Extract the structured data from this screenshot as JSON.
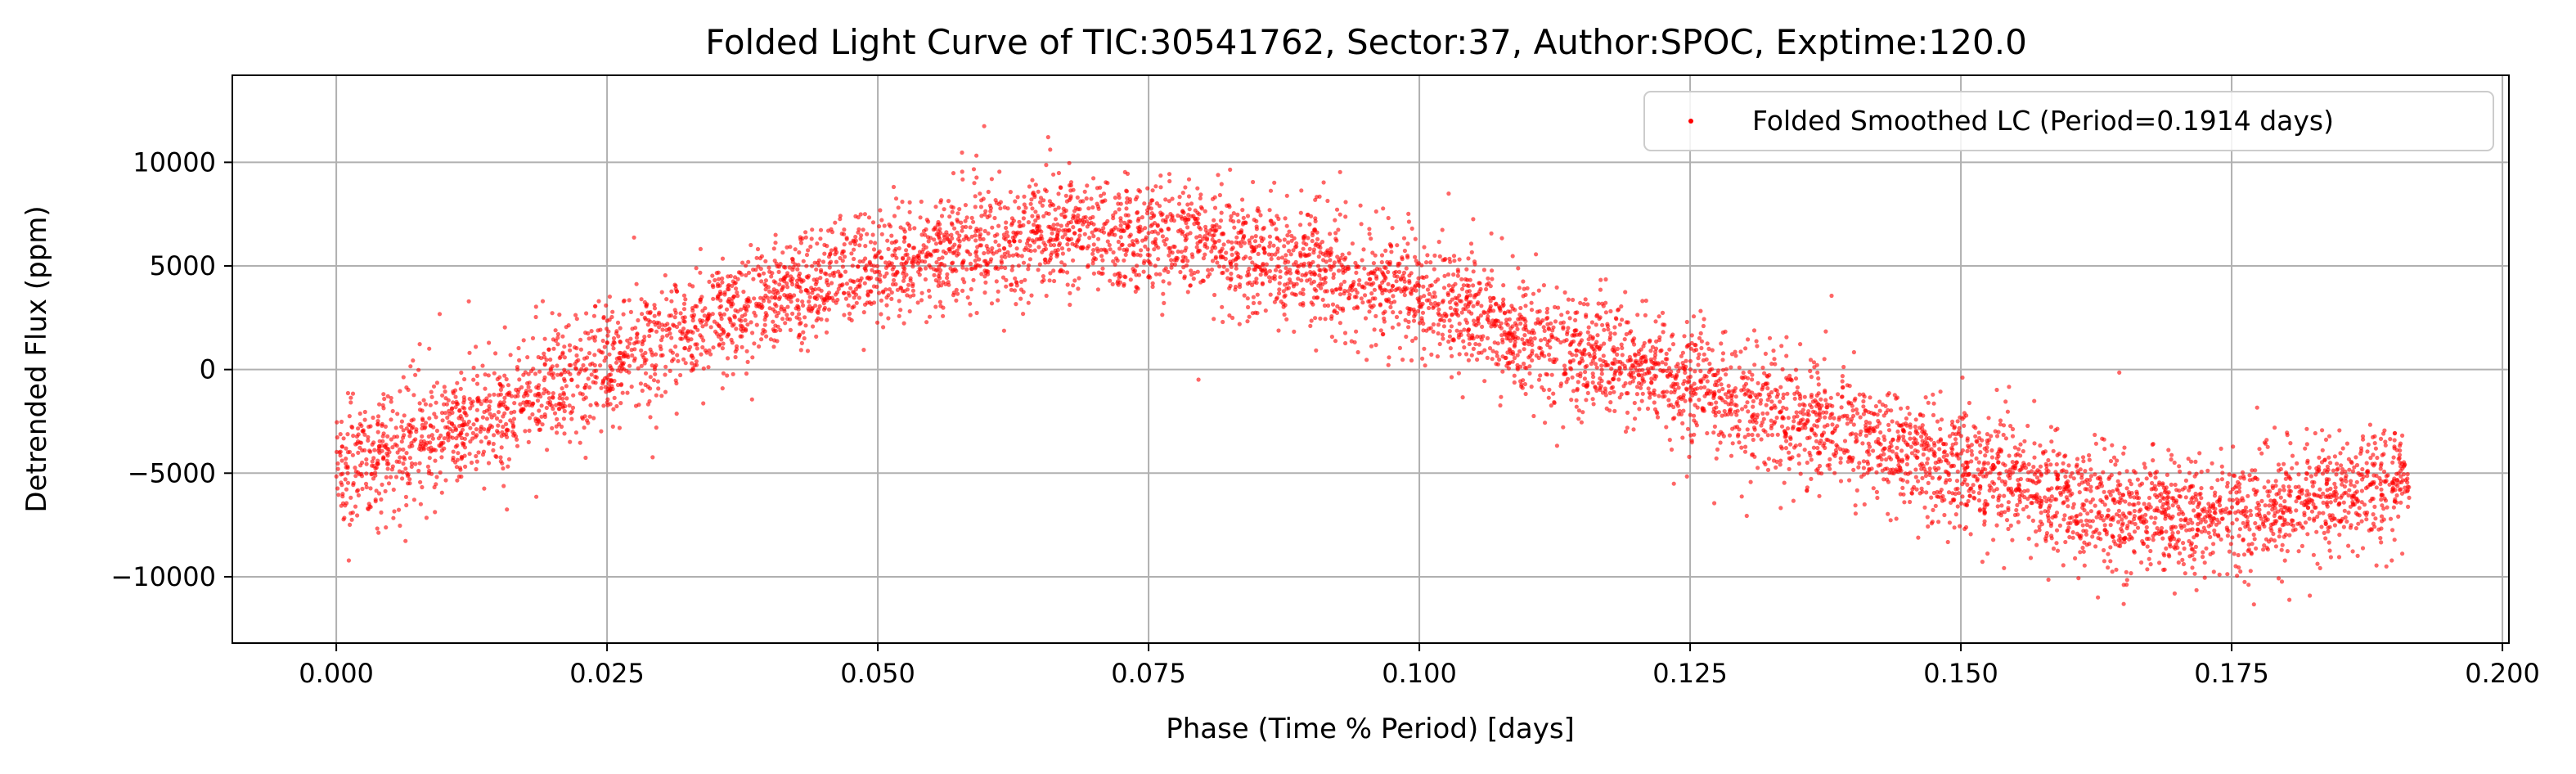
{
  "chart_data": {
    "type": "scatter",
    "title": "Folded Light Curve of TIC:30541762, Sector:37, Author:SPOC, Exptime:120.0",
    "xlabel": "Phase (Time % Period) [days]",
    "ylabel": "Detrended Flux (ppm)",
    "xlim": [
      -0.0096,
      0.2006
    ],
    "ylim": [
      -13200,
      14200
    ],
    "xticks": [
      0.0,
      0.025,
      0.05,
      0.075,
      0.1,
      0.125,
      0.15,
      0.175,
      0.2
    ],
    "xtick_labels": [
      "0.000",
      "0.025",
      "0.050",
      "0.075",
      "0.100",
      "0.125",
      "0.150",
      "0.175",
      "0.200"
    ],
    "yticks": [
      -10000,
      -5000,
      0,
      5000,
      10000
    ],
    "ytick_labels": [
      "−10000",
      "−5000",
      "0",
      "5000",
      "10000"
    ],
    "grid": true,
    "legend_position": "top-right",
    "color": "#ff0000",
    "series": [
      {
        "name": "Folded Smoothed LC (Period=0.1914 days)",
        "x_range": [
          0.0,
          0.1914
        ],
        "model_trend": {
          "x": [
            0.0,
            0.005,
            0.01,
            0.015,
            0.02,
            0.025,
            0.03,
            0.035,
            0.04,
            0.045,
            0.05,
            0.055,
            0.06,
            0.065,
            0.07,
            0.075,
            0.08,
            0.085,
            0.09,
            0.095,
            0.1,
            0.105,
            0.11,
            0.115,
            0.12,
            0.125,
            0.13,
            0.135,
            0.14,
            0.145,
            0.15,
            0.155,
            0.16,
            0.165,
            0.17,
            0.175,
            0.18,
            0.185,
            0.19,
            0.1914
          ],
          "y": [
            -4700,
            -3900,
            -3000,
            -1900,
            -800,
            300,
            1400,
            2500,
            3500,
            4400,
            5100,
            5700,
            6100,
            6400,
            6500,
            6400,
            6100,
            5600,
            4900,
            4200,
            3500,
            2600,
            1700,
            900,
            100,
            -700,
            -1500,
            -2300,
            -3100,
            -3900,
            -4700,
            -5500,
            -6300,
            -6900,
            -7200,
            -7100,
            -6700,
            -6000,
            -5300,
            -5000
          ]
        },
        "scatter_ppm": 1400
      }
    ]
  }
}
